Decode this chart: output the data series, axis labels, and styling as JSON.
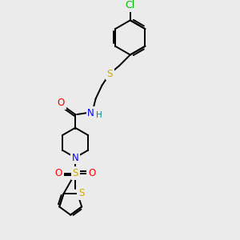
{
  "bg_color": "#ebebeb",
  "bond_color": "#000000",
  "atom_colors": {
    "Cl": "#00bb00",
    "S": "#ccaa00",
    "N": "#0000ff",
    "O": "#ff0000",
    "H": "#008888"
  },
  "lw": 1.4,
  "fontsize": 8.5
}
